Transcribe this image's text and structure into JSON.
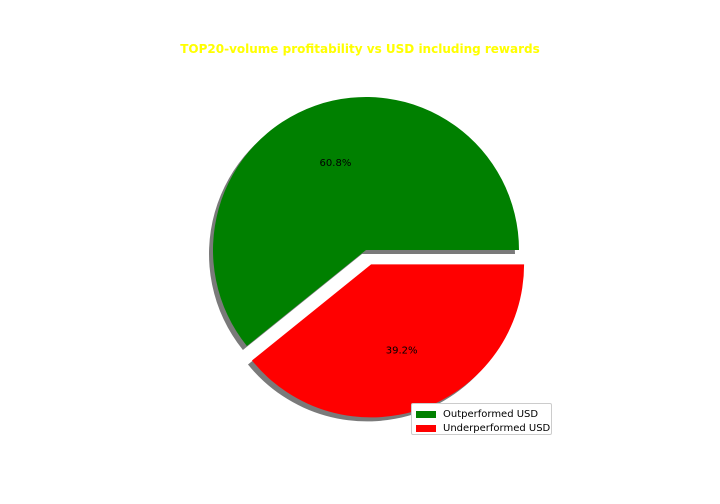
{
  "chart_data": {
    "type": "pie",
    "title": "TOP20-volume profitability vs USD including rewards",
    "title_color": "#ffff00",
    "slices": [
      {
        "label": "Outperformed USD",
        "value": 60.8,
        "display": "60.8%",
        "color": "#008000",
        "explode": 0.0
      },
      {
        "label": "Underperformed USD",
        "value": 39.2,
        "display": "39.2%",
        "color": "#ff0000",
        "explode": 0.1
      }
    ],
    "shadow": true,
    "legend_position": "lower-right"
  }
}
